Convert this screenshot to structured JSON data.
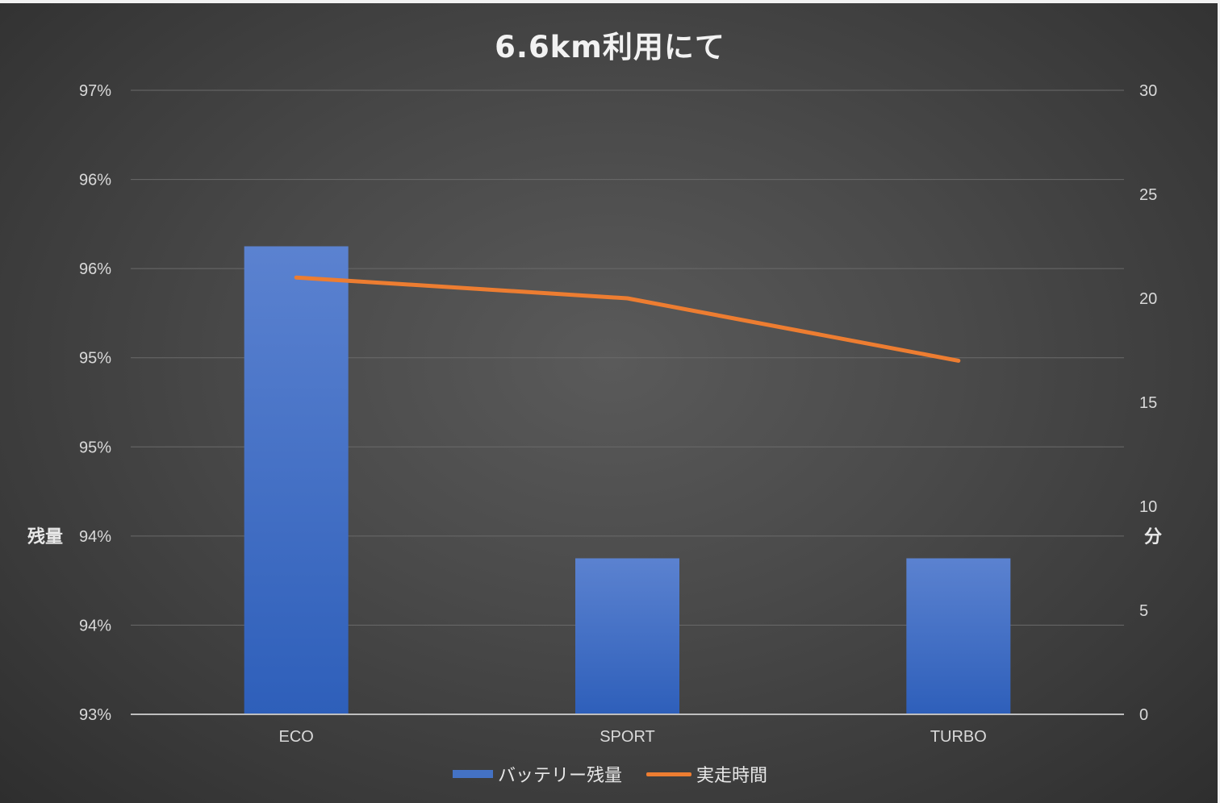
{
  "chart_data": {
    "type": "bar",
    "title": "6.6km利用にて",
    "categories": [
      "ECO",
      "SPORT",
      "TURBO"
    ],
    "series": [
      {
        "name": "バッテリー残量",
        "kind": "bar",
        "axis": "left",
        "values": [
          0.96,
          0.94,
          0.94
        ],
        "color": "#4472c4"
      },
      {
        "name": "実走時間",
        "kind": "line",
        "axis": "right",
        "values": [
          21,
          20,
          17
        ],
        "color": "#ed7d31"
      }
    ],
    "ylabel_left": "残量",
    "ylabel_right": "分",
    "y_left_ticks": [
      "97%",
      "96%",
      "96%",
      "95%",
      "95%",
      "94%",
      "94%",
      "93%"
    ],
    "y_left_range": [
      0.93,
      0.97
    ],
    "y_right_ticks": [
      "30",
      "25",
      "20",
      "15",
      "10",
      "5",
      "0"
    ],
    "y_right_range": [
      0,
      30
    ],
    "legend_position": "bottom",
    "grid": true
  }
}
